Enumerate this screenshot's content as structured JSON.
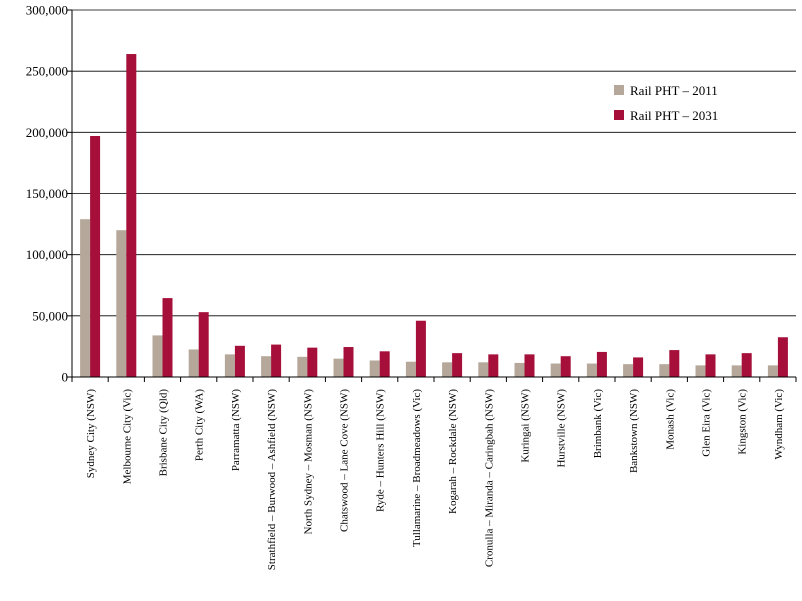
{
  "chart_data": {
    "type": "bar",
    "title": "",
    "xlabel": "",
    "ylabel": "",
    "ylim": [
      0,
      300000
    ],
    "yticks": [
      0,
      50000,
      100000,
      150000,
      200000,
      250000,
      300000
    ],
    "ytick_labels": [
      "0",
      "50,000",
      "100,000",
      "150,000",
      "200,000",
      "250,000",
      "300,000"
    ],
    "grid": "horizontal",
    "legend_position": "top-right",
    "categories": [
      "Sydney City (NSW)",
      "Melbourne City (Vic)",
      "Brisbane City (Qld)",
      "Perth City (WA)",
      "Parramatta (NSW)",
      "Strathfield – Burwood – Ashfield (NSW)",
      "North Sydney – Mosman (NSW)",
      "Chatswood – Lane Cove (NSW)",
      "Ryde – Hunters Hill (NSW)",
      "Tullamarine – Broadmeadows (Vic)",
      "Kogarah – Rockdale (NSW)",
      "Cronulla – Miranda – Caringbah (NSW)",
      "Kuringai (NSW)",
      "Hurstville (NSW)",
      "Brimbank (Vic)",
      "Bankstown (NSW)",
      "Monash (Vic)",
      "Glen Eira (Vic)",
      "Kingston (Vic)",
      "Wyndham (Vic)"
    ],
    "series": [
      {
        "name": "Rail PHT – 2011",
        "color": "#b5a89b",
        "values": [
          129000,
          120000,
          34000,
          22500,
          18500,
          17000,
          16500,
          15000,
          13500,
          12500,
          12000,
          12000,
          11500,
          11000,
          11000,
          10500,
          10500,
          9500,
          9500,
          9500
        ]
      },
      {
        "name": "Rail PHT – 2031",
        "color": "#a50f3a",
        "values": [
          197000,
          264000,
          64500,
          53000,
          25500,
          26500,
          24000,
          24500,
          21000,
          46000,
          19500,
          18500,
          18500,
          17000,
          20500,
          16000,
          22000,
          18500,
          19500,
          32500
        ]
      }
    ]
  }
}
